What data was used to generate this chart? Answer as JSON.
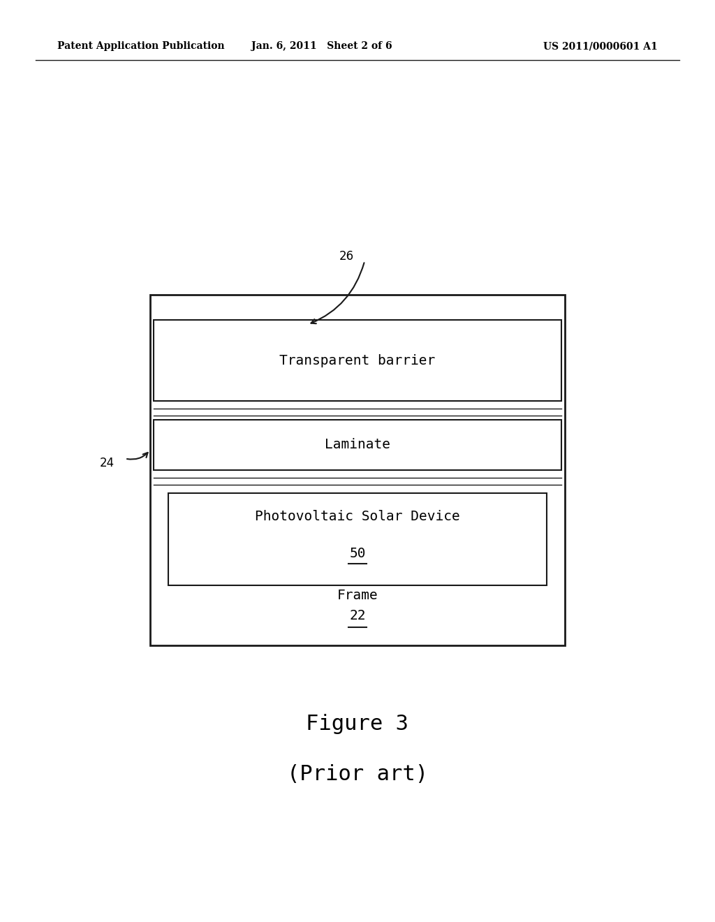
{
  "background_color": "#ffffff",
  "header_left": "Patent Application Publication",
  "header_center": "Jan. 6, 2011   Sheet 2 of 6",
  "header_right": "US 2011/0000601 A1",
  "header_fontsize": 10,
  "figure_caption_line1": "Figure 3",
  "figure_caption_line2": "(Prior art)",
  "caption_fontsize": 22,
  "transparent_barrier_label": "Transparent barrier",
  "laminate_label": "Laminate",
  "pv_device_label": "Photovoltaic Solar Device",
  "pv_device_number": "50",
  "frame_label": "Frame",
  "frame_number": "22",
  "label_24": "24",
  "label_26": "26",
  "text_color": "#000000",
  "line_color": "#1a1a1a"
}
